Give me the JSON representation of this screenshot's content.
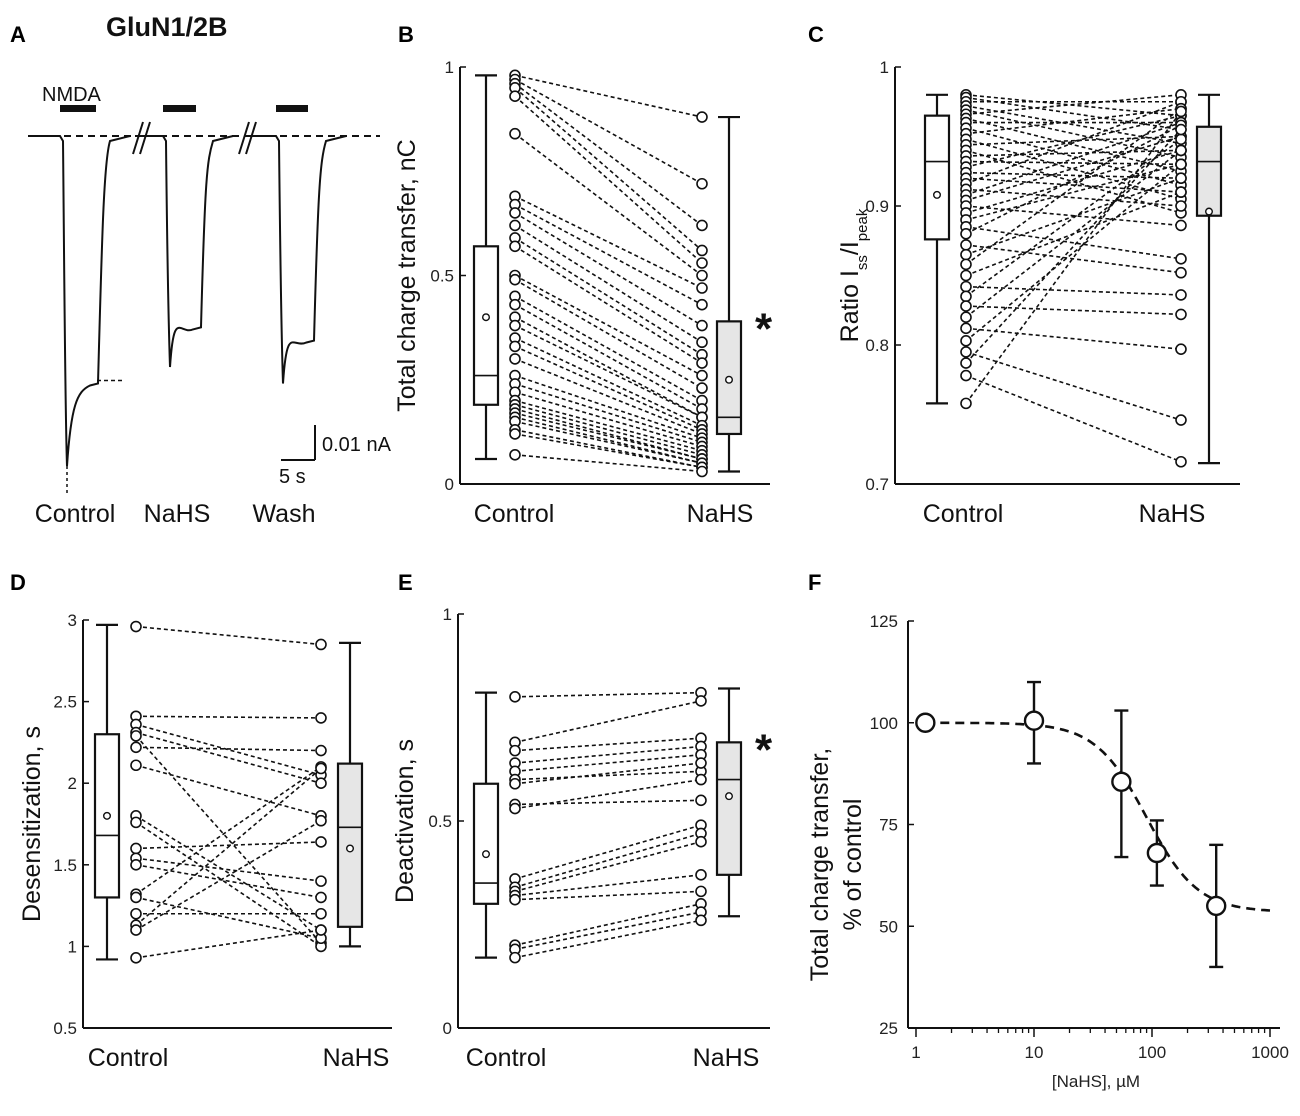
{
  "figure_title": "GluN1/2B",
  "panel_labels": [
    "A",
    "B",
    "C",
    "D",
    "E",
    "F"
  ],
  "chart_data": [
    {
      "panel": "A",
      "type": "trace",
      "stimulus_label": "NMDA",
      "conditions": [
        "Control",
        "NaHS",
        "Wash"
      ],
      "peak_relative": [
        1.0,
        0.7,
        0.75
      ],
      "steady_state_relative": [
        0.75,
        0.58,
        0.62
      ],
      "scalebar_y": "0.01 nA",
      "scalebar_x": "5 s"
    },
    {
      "panel": "B",
      "type": "box-paired",
      "ylabel": "Total charge transfer, nC",
      "ylim": [
        0,
        1
      ],
      "yticks": [
        0,
        0.5,
        1
      ],
      "ytick_labels": [
        "0",
        "0.5",
        "1"
      ],
      "categories": [
        "Control",
        "NaHS"
      ],
      "significance": "*",
      "control": [
        0.98,
        0.97,
        0.96,
        0.95,
        0.93,
        0.84,
        0.69,
        0.67,
        0.65,
        0.62,
        0.59,
        0.57,
        0.5,
        0.49,
        0.45,
        0.43,
        0.4,
        0.38,
        0.35,
        0.33,
        0.3,
        0.26,
        0.24,
        0.22,
        0.2,
        0.19,
        0.18,
        0.17,
        0.16,
        0.15,
        0.13,
        0.12,
        0.07
      ],
      "nahs": [
        0.88,
        0.72,
        0.62,
        0.56,
        0.53,
        0.5,
        0.47,
        0.43,
        0.38,
        0.34,
        0.31,
        0.29,
        0.26,
        0.23,
        0.2,
        0.18,
        0.16,
        0.16,
        0.14,
        0.13,
        0.12,
        0.11,
        0.1,
        0.09,
        0.08,
        0.07,
        0.06,
        0.06,
        0.05,
        0.05,
        0.04,
        0.04,
        0.03
      ],
      "box_control": {
        "whisker_low": 0.06,
        "q1": 0.19,
        "median": 0.26,
        "q3": 0.57,
        "whisker_high": 0.98,
        "mean": 0.4
      },
      "box_nahs": {
        "whisker_low": 0.03,
        "q1": 0.12,
        "median": 0.16,
        "q3": 0.39,
        "whisker_high": 0.88,
        "mean": 0.25
      }
    },
    {
      "panel": "C",
      "type": "box-paired",
      "ylabel": "Ratio I",
      "ylabel_sub1": "ss",
      "ylabel_mid": "/I",
      "ylabel_sub2": "peak",
      "ylim": [
        0.7,
        1
      ],
      "yticks": [
        0.7,
        0.8,
        0.9,
        1
      ],
      "ytick_labels": [
        "0.7",
        "0.8",
        "0.9",
        "1"
      ],
      "categories": [
        "Control",
        "NaHS"
      ],
      "control": [
        0.98,
        0.978,
        0.975,
        0.972,
        0.969,
        0.966,
        0.963,
        0.96,
        0.956,
        0.952,
        0.948,
        0.944,
        0.94,
        0.936,
        0.932,
        0.928,
        0.924,
        0.92,
        0.916,
        0.912,
        0.908,
        0.904,
        0.9,
        0.895,
        0.89,
        0.885,
        0.88,
        0.872,
        0.865,
        0.858,
        0.85,
        0.842,
        0.835,
        0.828,
        0.82,
        0.812,
        0.803,
        0.795,
        0.787,
        0.778,
        0.758
      ],
      "nahs": [
        0.965,
        0.955,
        0.975,
        0.945,
        0.935,
        0.98,
        0.925,
        0.96,
        0.915,
        0.97,
        0.905,
        0.95,
        0.895,
        0.94,
        0.93,
        0.965,
        0.92,
        0.91,
        0.975,
        0.9,
        0.96,
        0.95,
        0.886,
        0.94,
        0.93,
        0.862,
        0.958,
        0.852,
        0.92,
        0.97,
        0.91,
        0.836,
        0.948,
        0.822,
        0.94,
        0.797,
        0.93,
        0.746,
        0.955,
        0.716,
        0.968
      ],
      "box_control": {
        "whisker_low": 0.758,
        "q1": 0.876,
        "median": 0.932,
        "q3": 0.965,
        "whisker_high": 0.98,
        "mean": 0.908
      },
      "box_nahs": {
        "whisker_low": 0.715,
        "q1": 0.893,
        "median": 0.932,
        "q3": 0.957,
        "whisker_high": 0.98,
        "mean": 0.896
      }
    },
    {
      "panel": "D",
      "type": "box-paired",
      "ylabel": "Desensitization, s",
      "ylim": [
        0.5,
        3
      ],
      "yticks": [
        0.5,
        1,
        1.5,
        2,
        2.5,
        3
      ],
      "ytick_labels": [
        "0.5",
        "1",
        "1.5",
        "2",
        "2.5",
        "3"
      ],
      "categories": [
        "Control",
        "NaHS"
      ],
      "control": [
        2.96,
        2.41,
        2.36,
        2.31,
        2.29,
        2.22,
        2.11,
        1.8,
        1.76,
        1.6,
        1.54,
        1.5,
        1.32,
        1.3,
        1.2,
        1.13,
        1.1,
        0.93
      ],
      "nahs": [
        2.85,
        2.4,
        2.05,
        2.0,
        1.02,
        2.2,
        1.8,
        1.1,
        1.0,
        1.64,
        1.4,
        1.3,
        2.1,
        1.05,
        1.2,
        2.09,
        1.77,
        1.1
      ],
      "box_control": {
        "whisker_low": 0.92,
        "q1": 1.3,
        "median": 1.68,
        "q3": 2.3,
        "whisker_high": 2.97,
        "mean": 1.8
      },
      "box_nahs": {
        "whisker_low": 1.0,
        "q1": 1.12,
        "median": 1.73,
        "q3": 2.12,
        "whisker_high": 2.86,
        "mean": 1.6
      }
    },
    {
      "panel": "E",
      "type": "box-paired",
      "ylabel": "Deactivation, s",
      "ylim": [
        0,
        1
      ],
      "yticks": [
        0,
        0.5,
        1
      ],
      "ytick_labels": [
        "0",
        "0.5",
        "1"
      ],
      "categories": [
        "Control",
        "NaHS"
      ],
      "significance": "*",
      "control": [
        0.8,
        0.69,
        0.67,
        0.64,
        0.62,
        0.6,
        0.59,
        0.54,
        0.53,
        0.36,
        0.34,
        0.33,
        0.32,
        0.31,
        0.2,
        0.19,
        0.17
      ],
      "nahs": [
        0.81,
        0.79,
        0.7,
        0.68,
        0.66,
        0.62,
        0.64,
        0.55,
        0.6,
        0.49,
        0.47,
        0.45,
        0.37,
        0.33,
        0.3,
        0.28,
        0.26
      ],
      "box_control": {
        "whisker_low": 0.17,
        "q1": 0.3,
        "median": 0.35,
        "q3": 0.59,
        "whisker_high": 0.81,
        "mean": 0.42
      },
      "box_nahs": {
        "whisker_low": 0.27,
        "q1": 0.37,
        "median": 0.6,
        "q3": 0.69,
        "whisker_high": 0.82,
        "mean": 0.56
      }
    },
    {
      "panel": "F",
      "type": "scatter",
      "xscale": "log",
      "xlabel": "[NaHS], µM",
      "ylabel_line1": "Total charge transfer,",
      "ylabel_line2": "% of control",
      "xlim": [
        1,
        1000
      ],
      "ylim": [
        25,
        125
      ],
      "xticks": [
        1,
        10,
        100,
        1000
      ],
      "xtick_labels": [
        "1",
        "10",
        "100",
        "1000"
      ],
      "yticks": [
        25,
        50,
        75,
        100,
        125
      ],
      "ytick_labels": [
        "25",
        "50",
        "75",
        "100",
        "125"
      ],
      "x": [
        1.2,
        10,
        55,
        110,
        350
      ],
      "y": [
        100,
        100.5,
        85.5,
        68,
        55
      ],
      "err_low": [
        0,
        10.5,
        18.5,
        8,
        15
      ],
      "err_high": [
        0,
        9.5,
        17.5,
        8,
        15
      ],
      "fit": {
        "top": 100,
        "bottom": 53.5,
        "ic50": 90,
        "hill": 2
      }
    }
  ]
}
